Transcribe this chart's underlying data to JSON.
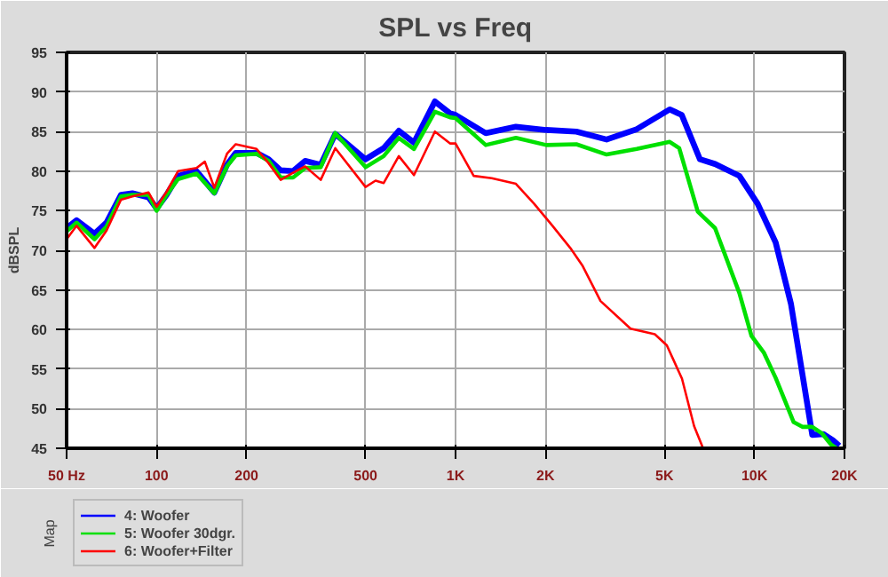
{
  "chart_data": {
    "type": "line",
    "title": "SPL vs Freq",
    "ylabel": "dBSPL",
    "annotations": [
      "Map"
    ],
    "xlim": [
      50,
      20000
    ],
    "ylim": [
      45,
      95
    ],
    "xticks": [
      {
        "value": 50,
        "label": "50 Hz"
      },
      100,
      200,
      500,
      {
        "value": 1000,
        "label": "1K"
      },
      {
        "value": 2000,
        "label": "2K"
      },
      {
        "value": 5000,
        "label": "5K"
      },
      {
        "value": 10000,
        "label": "10K"
      },
      {
        "value": 20000,
        "label": "20K"
      }
    ],
    "yticks": [
      45,
      50,
      55,
      60,
      65,
      70,
      75,
      80,
      85,
      90,
      95
    ],
    "log": "x",
    "grid": true,
    "legend": "bottom",
    "line_style": "solid",
    "series": [
      {
        "name": "4: Woofer",
        "color": "#0000ff",
        "x": [
          50,
          54,
          62,
          68,
          76,
          83,
          94,
          100,
          108,
          118,
          136,
          156,
          172,
          184,
          216,
          237,
          260,
          286,
          314,
          354,
          396,
          500,
          575,
          646,
          726,
          853,
          958,
          1000,
          1262,
          1592,
          2010,
          2536,
          3200,
          4037,
          5205,
          5710,
          6570,
          7380,
          8900,
          10240,
          11770,
          13250,
          14500,
          15600,
          17000,
          18300,
          19200
        ],
        "values": [
          72.8,
          73.8,
          72.1,
          73.5,
          77.0,
          77.2,
          76.7,
          75.3,
          77.0,
          79.4,
          80.0,
          77.3,
          80.8,
          82.3,
          82.3,
          81.5,
          80.1,
          80.0,
          81.3,
          80.8,
          84.7,
          81.5,
          82.9,
          85.1,
          83.6,
          88.8,
          87.3,
          87.1,
          84.8,
          85.6,
          85.2,
          85.0,
          84.0,
          85.3,
          87.8,
          87.1,
          81.5,
          80.9,
          79.4,
          75.9,
          71.0,
          63.2,
          54.1,
          46.7,
          46.8,
          46.0,
          45.3
        ]
      },
      {
        "name": "5: Woofer 30dgr.",
        "color": "#00e000",
        "x": [
          50,
          54,
          62,
          68,
          76,
          83,
          94,
          100,
          108,
          118,
          136,
          156,
          172,
          184,
          216,
          237,
          260,
          286,
          314,
          354,
          396,
          500,
          575,
          646,
          726,
          853,
          958,
          1000,
          1262,
          1592,
          2010,
          2536,
          3200,
          4037,
          5205,
          5600,
          6460,
          7380,
          8900,
          9770,
          10740,
          11770,
          13520,
          14500,
          15600,
          16800,
          18000,
          18800
        ],
        "values": [
          72.4,
          73.5,
          71.4,
          73.0,
          76.8,
          77.0,
          77.0,
          75.0,
          77.0,
          79.0,
          79.7,
          77.2,
          80.6,
          82.0,
          82.2,
          81.3,
          79.2,
          79.2,
          80.4,
          80.5,
          84.8,
          80.5,
          81.9,
          84.2,
          82.8,
          87.5,
          86.8,
          86.7,
          83.3,
          84.2,
          83.3,
          83.4,
          82.1,
          82.8,
          83.7,
          82.9,
          74.9,
          72.8,
          64.6,
          59.2,
          57.1,
          53.9,
          48.3,
          47.7,
          47.7,
          46.9,
          45.5,
          45.0
        ]
      },
      {
        "name": "6: Woofer+Filter",
        "color": "#ff0000",
        "x": [
          50,
          54,
          62,
          68,
          76,
          83,
          94,
          100,
          108,
          118,
          136,
          145,
          156,
          172,
          184,
          216,
          237,
          260,
          286,
          314,
          354,
          396,
          500,
          540,
          575,
          646,
          726,
          853,
          958,
          1000,
          1150,
          1322,
          1592,
          1830,
          2110,
          2420,
          2655,
          3055,
          3850,
          4640,
          5090,
          5720,
          6280,
          6730
        ],
        "values": [
          71.4,
          73.1,
          70.3,
          72.5,
          76.4,
          76.8,
          77.3,
          75.5,
          77.4,
          80.0,
          80.4,
          81.2,
          77.9,
          82.2,
          83.4,
          82.8,
          81.0,
          78.9,
          79.8,
          80.6,
          78.9,
          82.9,
          78.0,
          78.8,
          78.5,
          81.9,
          79.5,
          85.0,
          83.5,
          83.5,
          79.4,
          79.1,
          78.4,
          75.9,
          73.1,
          70.3,
          68.1,
          63.6,
          60.1,
          59.4,
          58.0,
          53.8,
          47.8,
          45.0
        ]
      }
    ]
  }
}
